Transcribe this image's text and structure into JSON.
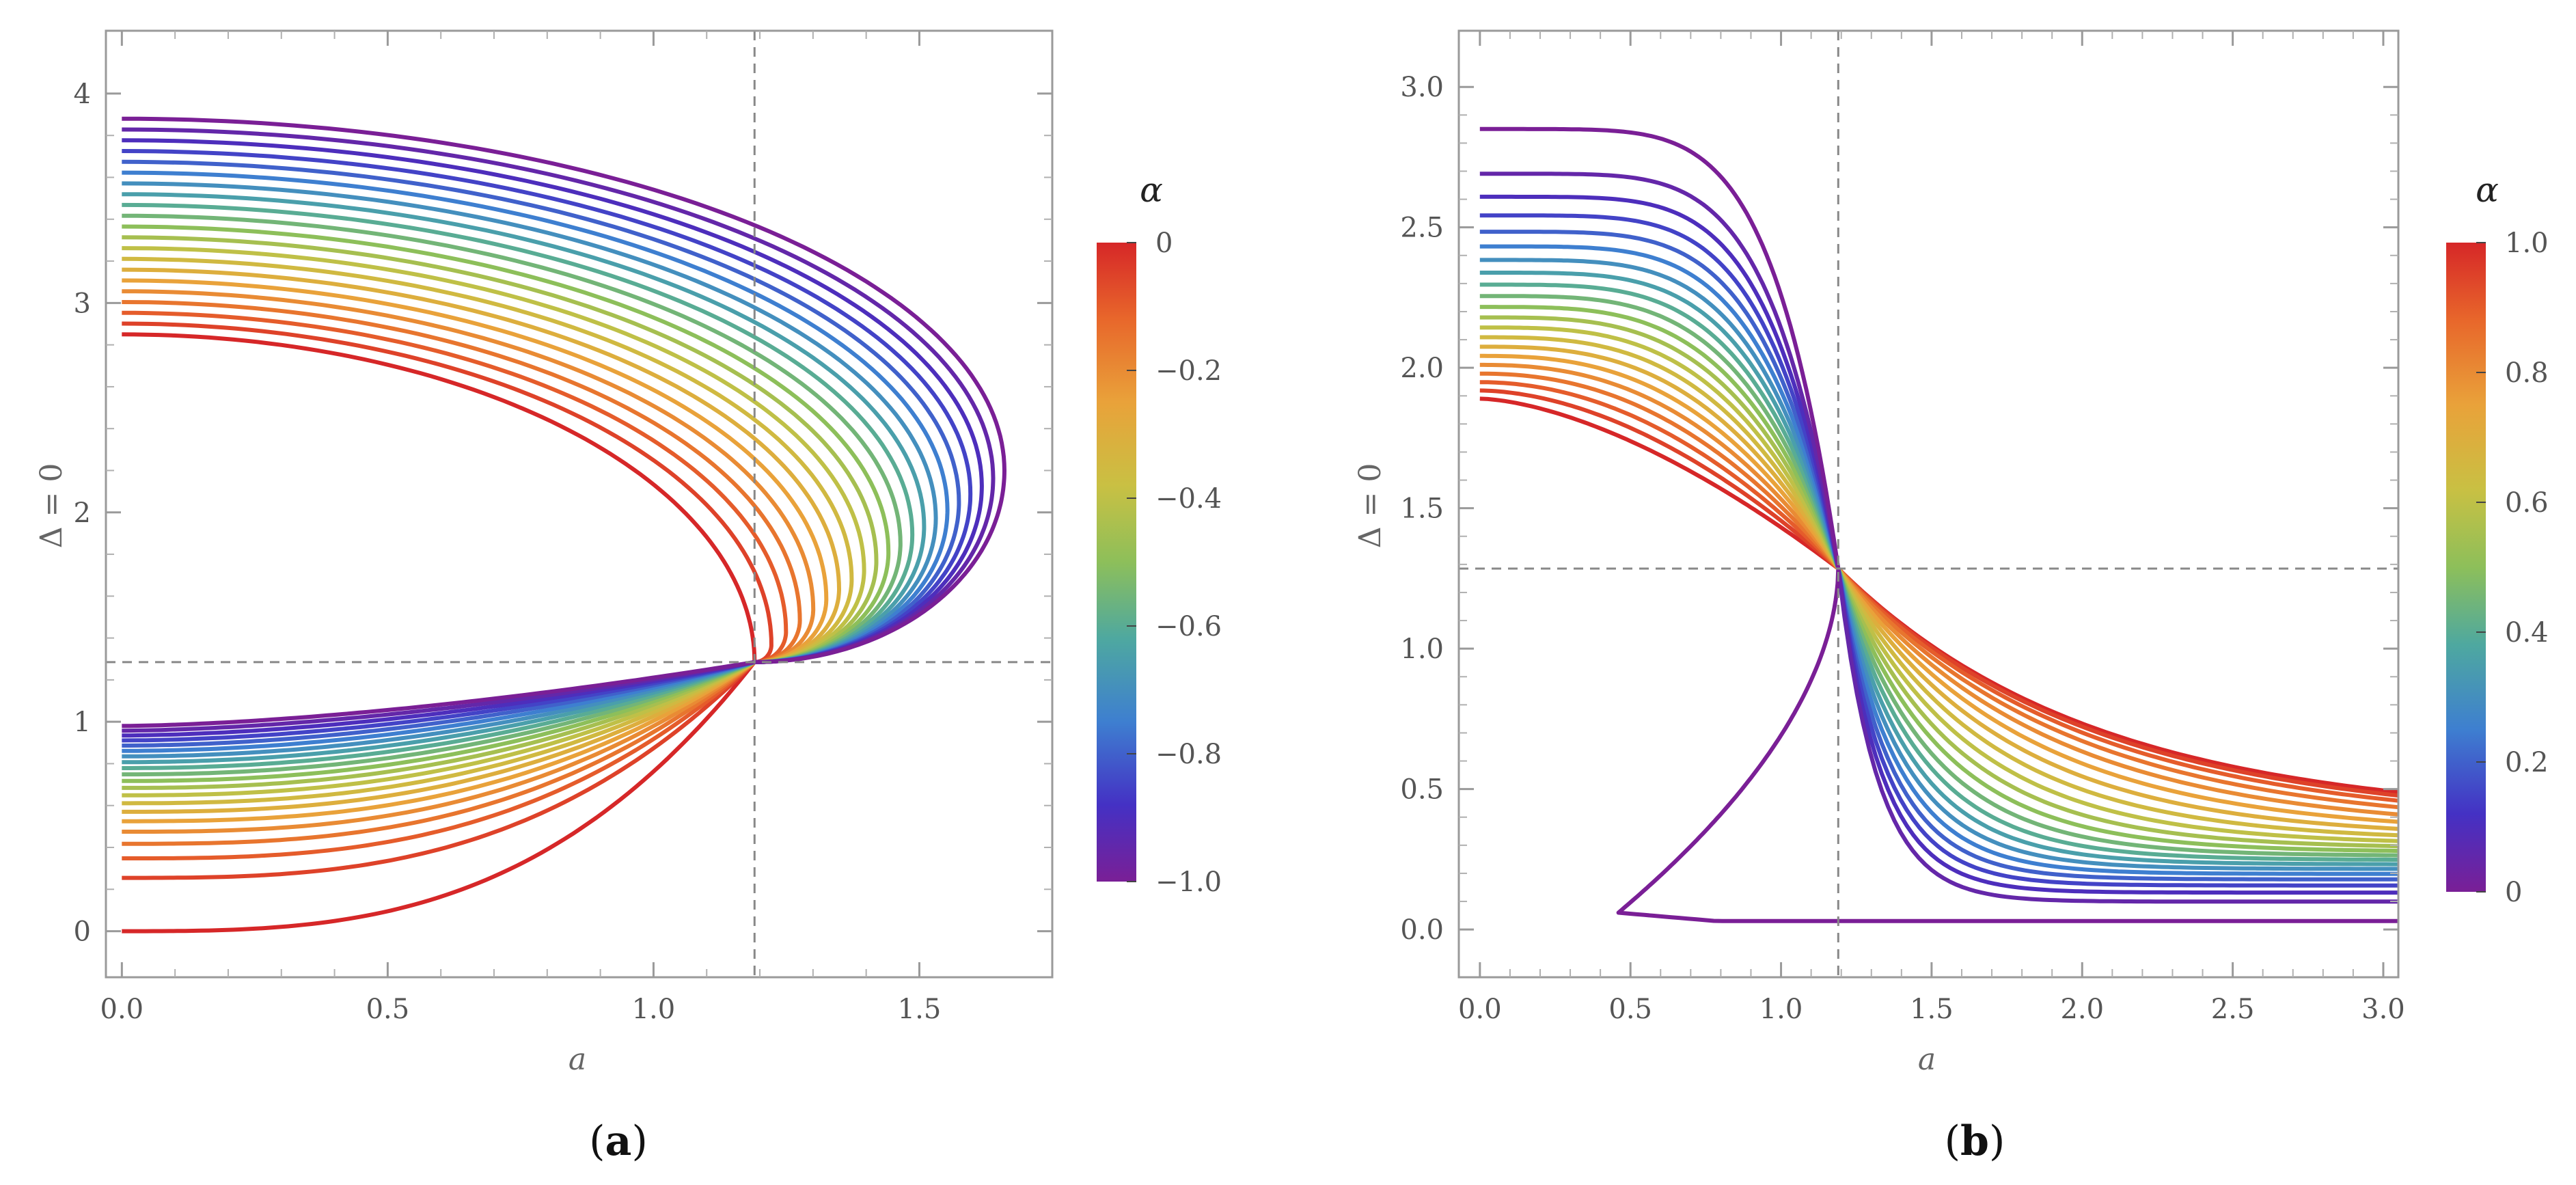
{
  "chart_data": [
    {
      "panel": "a",
      "caption_letter": "a",
      "type": "line",
      "xlabel": "a",
      "ylabel": "Δ = 0",
      "xlim": [
        -0.03,
        1.75
      ],
      "ylim": [
        -0.22,
        4.3
      ],
      "xticks": [
        0,
        0.5,
        1.0,
        1.5
      ],
      "xtick_labels": [
        "0.0",
        "0.5",
        "1.0",
        "1.5"
      ],
      "yticks": [
        0,
        1,
        2,
        3,
        4
      ],
      "ytick_labels": [
        "0",
        "1",
        "2",
        "3",
        "4"
      ],
      "reference_lines": {
        "x": 1.19,
        "y": 1.285
      },
      "colorbar": {
        "title": "α",
        "range": [
          -1.0,
          0
        ],
        "tick_values": [
          0,
          -0.2,
          -0.4,
          -0.6,
          -0.8,
          -1.0
        ],
        "tick_labels": [
          "0",
          "−0.2",
          "−0.4",
          "−0.6",
          "−0.8",
          "−1.0"
        ]
      },
      "series_alpha": [
        0,
        -0.05,
        -0.1,
        -0.15,
        -0.2,
        -0.25,
        -0.3,
        -0.35,
        -0.4,
        -0.45,
        -0.5,
        -0.55,
        -0.6,
        -0.65,
        -0.7,
        -0.75,
        -0.8,
        -0.85,
        -0.9,
        -0.95,
        -1.0
      ],
      "curve_points": {
        "upper_start": [
          2.85,
          3.88
        ],
        "lower_start": [
          0.0,
          0.98
        ],
        "tip_a": [
          1.19,
          1.66
        ],
        "tip_y": [
          1.285,
          2.2
        ]
      },
      "grid": false
    },
    {
      "panel": "b",
      "caption_letter": "b",
      "type": "line",
      "xlabel": "a",
      "ylabel": "Δ = 0",
      "xlim": [
        -0.07,
        3.05
      ],
      "ylim": [
        -0.17,
        3.2
      ],
      "xticks": [
        0,
        0.5,
        1.0,
        1.5,
        2.0,
        2.5,
        3.0
      ],
      "xtick_labels": [
        "0.0",
        "0.5",
        "1.0",
        "1.5",
        "2.0",
        "2.5",
        "3.0"
      ],
      "yticks": [
        0,
        0.5,
        1.0,
        1.5,
        2.0,
        2.5,
        3.0
      ],
      "ytick_labels": [
        "0.0",
        "0.5",
        "1.0",
        "1.5",
        "2.0",
        "2.5",
        "3.0"
      ],
      "reference_lines": {
        "x": 1.19,
        "y": 1.285
      },
      "colorbar": {
        "title": "α",
        "range": [
          0,
          1.0
        ],
        "tick_values": [
          1.0,
          0.8,
          0.6,
          0.4,
          0.2,
          0
        ],
        "tick_labels": [
          "1.0",
          "0.8",
          "0.6",
          "0.4",
          "0.2",
          "0"
        ]
      },
      "series_alpha": [
        1.0,
        0.95,
        0.9,
        0.85,
        0.8,
        0.75,
        0.7,
        0.65,
        0.6,
        0.55,
        0.5,
        0.45,
        0.4,
        0.35,
        0.3,
        0.25,
        0.2,
        0.15,
        0.1,
        0.05,
        0
      ],
      "curve_points": {
        "start_y": [
          1.89,
          2.85
        ],
        "end_y_at_3": [
          0.39,
          0.03
        ]
      },
      "grid": false
    }
  ],
  "captions": [
    {
      "letter": "a"
    },
    {
      "letter": "b"
    }
  ]
}
